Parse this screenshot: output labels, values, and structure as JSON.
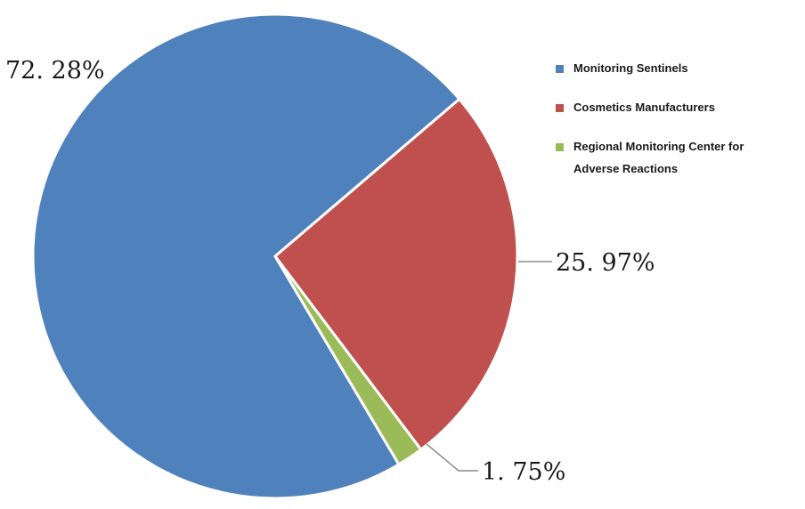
{
  "chart_data": {
    "type": "pie",
    "title": "",
    "slices": [
      {
        "label": "Monitoring Sentinels",
        "value": 72.28,
        "display": "72. 28%",
        "color": "#4F81BD"
      },
      {
        "label": "Cosmetics Manufacturers",
        "value": 25.97,
        "display": "25. 97%",
        "color": "#C0504D"
      },
      {
        "label": "Regional Monitoring Center  for Adverse Reactions",
        "value": 1.75,
        "display": "1. 75%",
        "color": "#9BBB59"
      }
    ],
    "legend_position": "right"
  }
}
